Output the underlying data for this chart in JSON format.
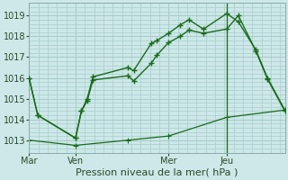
{
  "background_color": "#cce8e8",
  "grid_color": "#aacccc",
  "line_color": "#1a6b1a",
  "title": "Pression niveau de la mer( hPa )",
  "ylim": [
    1012.4,
    1019.6
  ],
  "yticks": [
    1013,
    1014,
    1015,
    1016,
    1017,
    1018,
    1019
  ],
  "x_tick_labels": [
    "Mar",
    "Ven",
    "Mer",
    "Jeu"
  ],
  "x_tick_positions": [
    0,
    16,
    48,
    68
  ],
  "xlim": [
    0,
    88
  ],
  "vline_x": 68,
  "series1_x": [
    0,
    3,
    16,
    18,
    20,
    22,
    34,
    36,
    42,
    44,
    48,
    52,
    55,
    60,
    68,
    72,
    78,
    82,
    88
  ],
  "series1_y": [
    1016.0,
    1014.2,
    1013.1,
    1014.4,
    1015.0,
    1016.05,
    1016.5,
    1016.35,
    1017.65,
    1017.8,
    1018.15,
    1018.55,
    1018.8,
    1018.35,
    1019.1,
    1018.7,
    1017.35,
    1016.0,
    1014.45
  ],
  "series2_x": [
    0,
    3,
    16,
    18,
    20,
    22,
    34,
    36,
    42,
    44,
    48,
    52,
    55,
    60,
    68,
    72,
    78,
    82,
    88
  ],
  "series2_y": [
    1016.0,
    1014.2,
    1013.1,
    1014.4,
    1014.9,
    1015.9,
    1016.1,
    1015.85,
    1016.7,
    1017.1,
    1017.7,
    1018.0,
    1018.3,
    1018.15,
    1018.35,
    1019.0,
    1017.3,
    1015.95,
    1014.4
  ],
  "series3_x": [
    0,
    16,
    34,
    48,
    68,
    88
  ],
  "series3_y": [
    1013.0,
    1012.75,
    1013.0,
    1013.2,
    1014.1,
    1014.45
  ],
  "title_fontsize": 8,
  "tick_fontsize": 7
}
